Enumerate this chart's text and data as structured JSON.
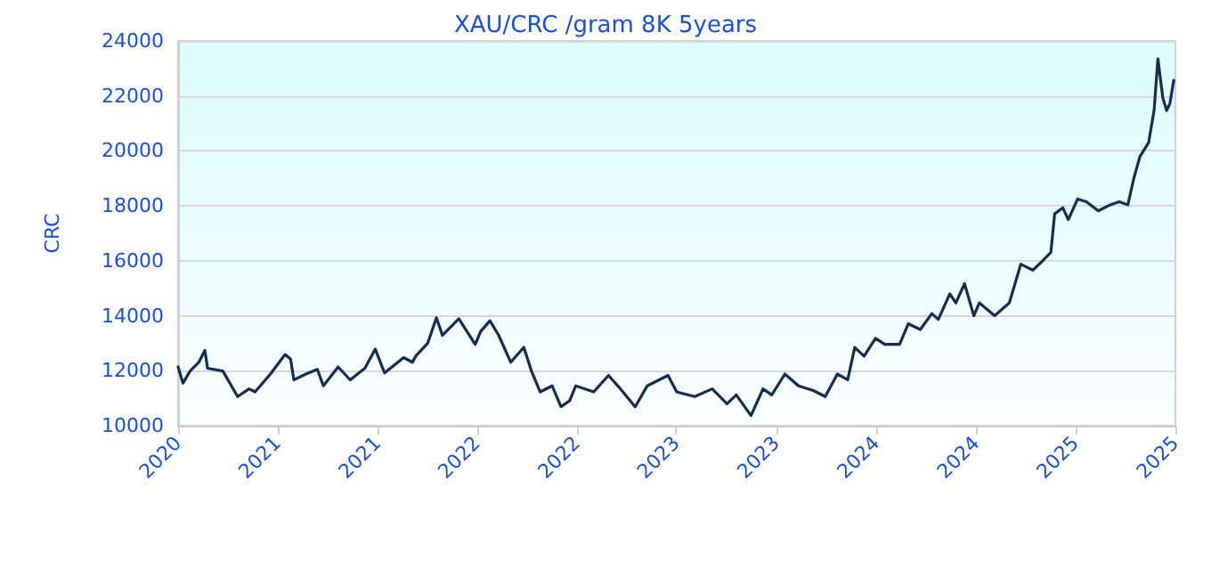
{
  "chart_data": {
    "type": "line",
    "title": "XAU/CRC /gram 8K 5years",
    "ylabel": "CRC",
    "x": [
      "2020-12-01",
      "2020-12-10",
      "2020-12-23",
      "2021-01-08",
      "2021-01-19",
      "2021-01-24",
      "2021-02-21",
      "2021-03-20",
      "2021-04-10",
      "2021-04-21",
      "2021-05-19",
      "2021-06-15",
      "2021-06-25",
      "2021-07-01",
      "2021-07-23",
      "2021-08-13",
      "2021-08-24",
      "2021-09-20",
      "2021-10-12",
      "2021-11-08",
      "2021-11-27",
      "2021-12-14",
      "2022-01-18",
      "2022-02-03",
      "2022-02-09",
      "2022-03-03",
      "2022-03-19",
      "2022-03-30",
      "2022-04-15",
      "2022-04-29",
      "2022-05-29",
      "2022-06-08",
      "2022-06-25",
      "2022-07-11",
      "2022-08-02",
      "2022-08-26",
      "2022-09-09",
      "2022-09-25",
      "2022-10-17",
      "2022-11-02",
      "2022-11-18",
      "2022-11-29",
      "2023-01-01",
      "2023-01-28",
      "2023-02-19",
      "2023-03-18",
      "2023-04-09",
      "2023-05-17",
      "2023-06-02",
      "2023-07-05",
      "2023-08-06",
      "2023-09-02",
      "2023-09-19",
      "2023-10-16",
      "2023-11-07",
      "2023-11-23",
      "2023-12-17",
      "2024-01-11",
      "2024-02-07",
      "2024-02-29",
      "2024-03-22",
      "2024-04-10",
      "2024-04-23",
      "2024-05-10",
      "2024-05-31",
      "2024-06-17",
      "2024-07-14",
      "2024-07-30",
      "2024-08-21",
      "2024-09-11",
      "2024-09-23",
      "2024-10-14",
      "2024-10-25",
      "2024-11-10",
      "2024-11-27",
      "2024-12-07",
      "2025-01-04",
      "2025-01-31",
      "2025-02-21",
      "2025-03-15",
      "2025-04-01",
      "2025-04-17",
      "2025-04-24",
      "2025-05-09",
      "2025-05-19",
      "2025-06-05",
      "2025-06-21",
      "2025-07-13",
      "2025-08-04",
      "2025-08-20",
      "2025-09-05",
      "2025-09-16",
      "2025-09-27",
      "2025-10-13",
      "2025-10-23",
      "2025-10-30",
      "2025-11-08",
      "2025-11-15",
      "2025-11-21",
      "2025-11-28"
    ],
    "series": [
      {
        "color": "#162d50",
        "values": [
          12140,
          11550,
          11990,
          12310,
          12740,
          12090,
          11990,
          11060,
          11340,
          11230,
          11880,
          12590,
          12420,
          11670,
          11880,
          12050,
          11450,
          12140,
          11670,
          12090,
          12790,
          11920,
          12480,
          12310,
          12530,
          13000,
          13930,
          13290,
          13610,
          13890,
          12960,
          13430,
          13820,
          13290,
          12310,
          12850,
          11990,
          11230,
          11450,
          10690,
          10910,
          11450,
          11230,
          11830,
          11340,
          10690,
          11450,
          11830,
          11230,
          11060,
          11340,
          10800,
          11120,
          10370,
          11340,
          11120,
          11880,
          11450,
          11280,
          11060,
          11880,
          11670,
          12850,
          12530,
          13180,
          12960,
          12960,
          13710,
          13500,
          14080,
          13870,
          14800,
          14470,
          15170,
          14000,
          14470,
          14000,
          14470,
          15880,
          15660,
          15980,
          16310,
          17710,
          17930,
          17500,
          18250,
          18150,
          17820,
          18040,
          18150,
          18040,
          19010,
          19790,
          20300,
          21470,
          23350,
          21930,
          21470,
          21730,
          22570
        ]
      }
    ],
    "xlim": [
      "2020-12-01",
      "2025-12-01"
    ],
    "xticks": [
      {
        "value": "2020-12-01",
        "label": "2020"
      },
      {
        "value": "2021-06-01",
        "label": "2021"
      },
      {
        "value": "2021-12-01",
        "label": "2021"
      },
      {
        "value": "2022-06-01",
        "label": "2022"
      },
      {
        "value": "2022-12-01",
        "label": "2022"
      },
      {
        "value": "2023-06-01",
        "label": "2023"
      },
      {
        "value": "2023-12-01",
        "label": "2023"
      },
      {
        "value": "2024-06-01",
        "label": "2024"
      },
      {
        "value": "2024-12-01",
        "label": "2024"
      },
      {
        "value": "2025-06-01",
        "label": "2025"
      },
      {
        "value": "2025-12-01",
        "label": "2025"
      }
    ],
    "ylim": [
      10000,
      24000
    ],
    "yticks": [
      10000,
      12000,
      14000,
      16000,
      18000,
      20000,
      22000,
      24000
    ],
    "grid": "y",
    "marker": "none",
    "line_style": "solid"
  }
}
